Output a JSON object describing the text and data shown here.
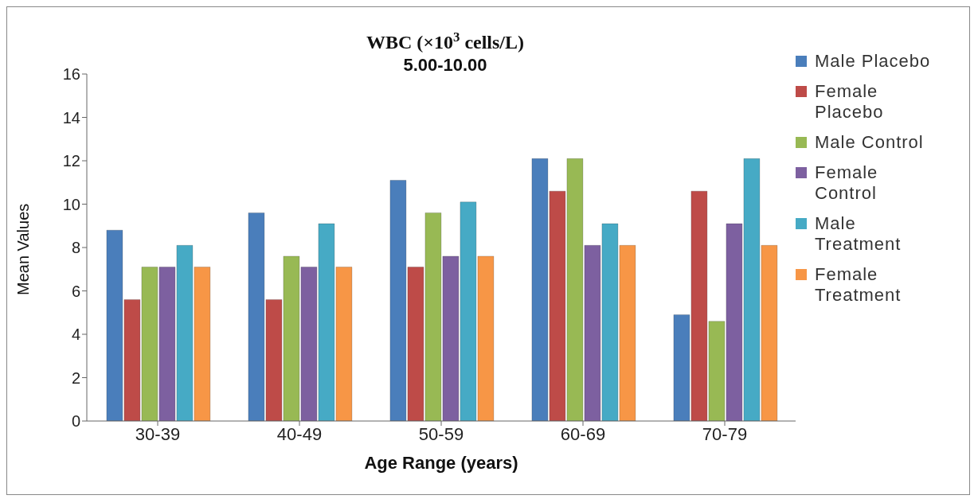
{
  "chart_data": {
    "type": "bar",
    "title": "WBC (×10$^{3}$cells/L)",
    "subtitle": "5.00-10.00",
    "xlabel": "Age Range (years)",
    "ylabel": "Mean Values",
    "categories": [
      "30-39",
      "40-49",
      "50-59",
      "60-69",
      "70-79"
    ],
    "series": [
      {
        "name": "Male Placebo",
        "color": "#4a7ebb",
        "values": [
          8.8,
          9.6,
          11.1,
          12.1,
          4.9
        ]
      },
      {
        "name": "Female Placebo",
        "color": "#be4b48",
        "values": [
          5.6,
          5.6,
          7.1,
          10.6,
          10.6
        ]
      },
      {
        "name": "Male Control",
        "color": "#98b954",
        "values": [
          7.1,
          7.6,
          9.6,
          12.1,
          4.6
        ]
      },
      {
        "name": "Female Control",
        "color": "#7d60a0",
        "values": [
          7.1,
          7.1,
          7.6,
          8.1,
          9.1
        ]
      },
      {
        "name": "Male Treatment",
        "color": "#46aac5",
        "values": [
          8.1,
          9.1,
          10.1,
          9.1,
          12.1
        ]
      },
      {
        "name": "Female Treatment",
        "color": "#f79646",
        "values": [
          7.1,
          7.1,
          7.6,
          8.1,
          8.1
        ]
      }
    ],
    "ylim": [
      0,
      16
    ],
    "yticks": [
      0,
      2,
      4,
      6,
      8,
      10,
      12,
      14,
      16
    ],
    "grid": false,
    "legend": "right"
  }
}
